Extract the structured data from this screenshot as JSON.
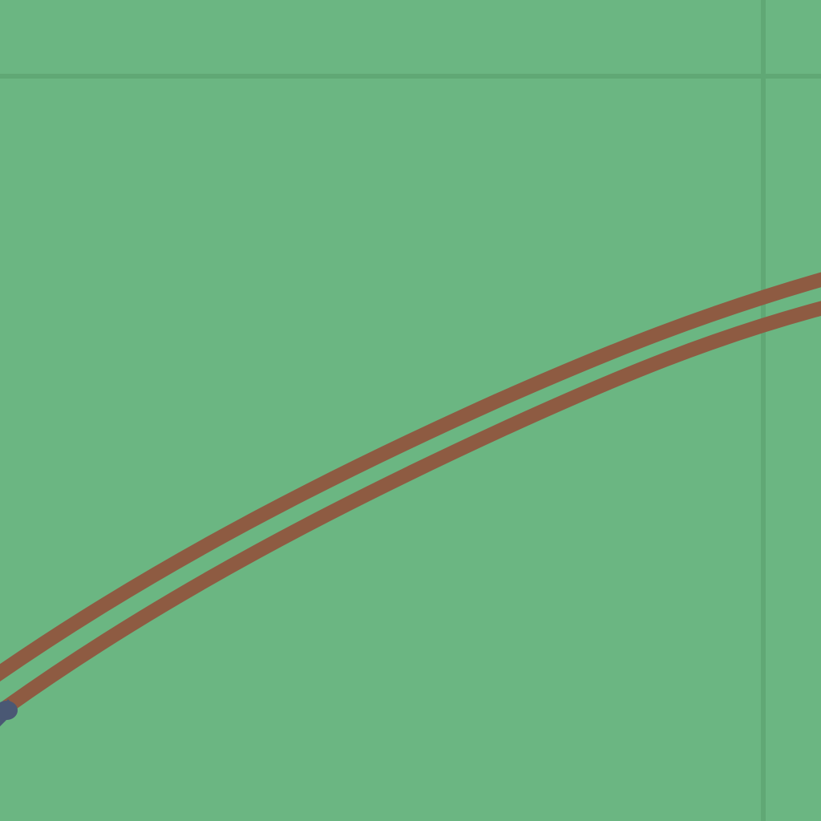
{
  "map": {
    "colors": {
      "land": "#6bb682",
      "grid_line": "#5fa473",
      "railway": "#8c5a40",
      "railway_end_marker": "#4a5a74"
    },
    "features": [
      {
        "kind": "grid-line",
        "orientation": "horizontal"
      },
      {
        "kind": "grid-line",
        "orientation": "vertical"
      },
      {
        "kind": "railway-track",
        "track": "upper"
      },
      {
        "kind": "railway-track",
        "track": "lower"
      },
      {
        "kind": "end-marker"
      }
    ]
  }
}
